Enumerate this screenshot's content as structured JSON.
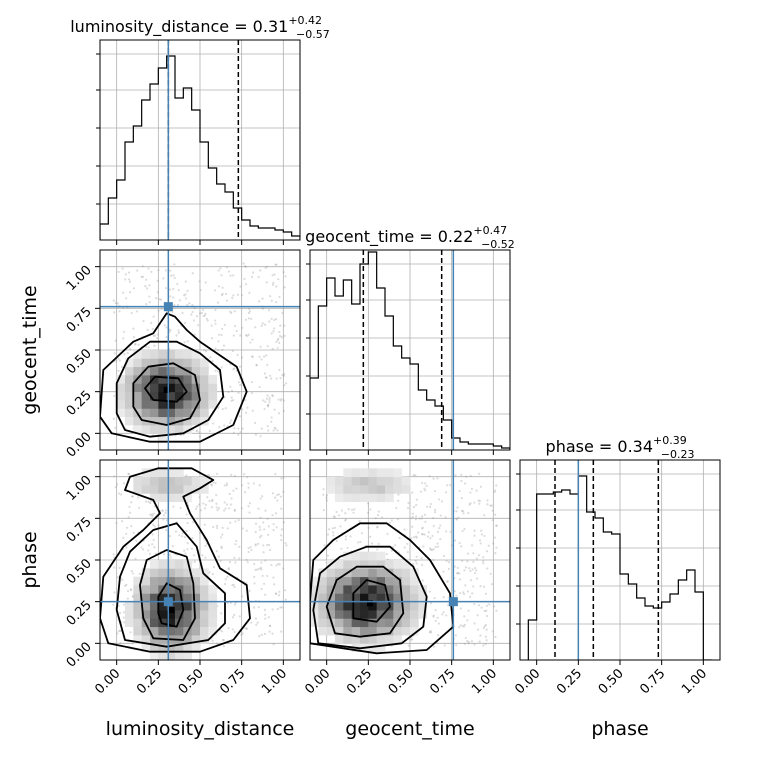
{
  "chart_data": {
    "type": "corner",
    "parameters": [
      "luminosity_distance",
      "geocent_time",
      "phase"
    ],
    "axis_range": [
      -0.1,
      1.1
    ],
    "ticks": [
      0.0,
      0.25,
      0.5,
      0.75,
      1.0
    ],
    "tick_labels": [
      "0.00",
      "0.25",
      "0.50",
      "0.75",
      "1.00"
    ],
    "grid": true,
    "colors": {
      "hist": "#000000",
      "truth": "#4682b4",
      "grid": "#b0b0b0"
    },
    "truths": {
      "luminosity_distance": 0.31,
      "geocent_time": 0.76,
      "phase": 0.25
    },
    "titles": [
      {
        "param": "luminosity_distance",
        "prefix": "luminosity_distance = 0.31",
        "plus": "+0.42",
        "minus": "−0.57"
      },
      {
        "param": "geocent_time",
        "prefix": "geocent_time = 0.22",
        "plus": "+0.47",
        "minus": "−0.52"
      },
      {
        "param": "phase",
        "prefix": "phase = 0.34",
        "plus": "+0.39",
        "minus": "−0.23"
      }
    ],
    "quantiles": {
      "luminosity_distance": [
        0.31,
        0.73
      ],
      "geocent_time": [
        0.22,
        0.69
      ],
      "phase": [
        0.11,
        0.34,
        0.73
      ]
    },
    "histograms": {
      "luminosity_distance": {
        "edges": [
          -0.1,
          -0.05,
          0.0,
          0.05,
          0.1,
          0.15,
          0.2,
          0.25,
          0.3,
          0.35,
          0.4,
          0.45,
          0.5,
          0.55,
          0.6,
          0.65,
          0.7,
          0.75,
          0.8,
          0.85,
          0.9,
          0.95,
          1.0,
          1.05,
          1.1
        ],
        "counts": [
          0.08,
          0.21,
          0.3,
          0.49,
          0.57,
          0.7,
          0.78,
          0.86,
          0.92,
          0.71,
          0.76,
          0.65,
          0.49,
          0.36,
          0.28,
          0.24,
          0.16,
          0.1,
          0.07,
          0.06,
          0.06,
          0.05,
          0.04,
          0.02
        ]
      },
      "geocent_time": {
        "edges": [
          -0.1,
          -0.05,
          0.0,
          0.05,
          0.1,
          0.15,
          0.2,
          0.25,
          0.3,
          0.35,
          0.4,
          0.45,
          0.5,
          0.55,
          0.6,
          0.65,
          0.7,
          0.75,
          0.8,
          0.85,
          0.9,
          0.95,
          1.0,
          1.05,
          1.1
        ],
        "counts": [
          0.36,
          0.72,
          0.86,
          0.77,
          0.85,
          0.73,
          0.93,
          0.99,
          0.81,
          0.67,
          0.52,
          0.46,
          0.43,
          0.3,
          0.25,
          0.22,
          0.15,
          0.06,
          0.04,
          0.03,
          0.03,
          0.03,
          0.02,
          0.01
        ]
      },
      "phase": {
        "edges": [
          -0.05,
          0.0,
          0.05,
          0.1,
          0.15,
          0.2,
          0.25,
          0.3,
          0.35,
          0.4,
          0.45,
          0.5,
          0.55,
          0.6,
          0.65,
          0.7,
          0.75,
          0.8,
          0.85,
          0.9,
          0.95,
          1.0,
          1.05
        ],
        "counts": [
          0.2,
          0.83,
          0.83,
          0.84,
          0.85,
          0.83,
          0.92,
          0.74,
          0.71,
          0.64,
          0.63,
          0.43,
          0.38,
          0.31,
          0.27,
          0.26,
          0.29,
          0.33,
          0.4,
          0.45,
          0.34,
          0.0
        ]
      }
    },
    "pairs": [
      {
        "x": "luminosity_distance",
        "y": "geocent_time",
        "peak": [
          0.3,
          0.26
        ],
        "contours": [
          [
            [
              0.22,
              0.2
            ],
            [
              0.36,
              0.19
            ],
            [
              0.42,
              0.25
            ],
            [
              0.37,
              0.33
            ],
            [
              0.23,
              0.34
            ],
            [
              0.17,
              0.27
            ]
          ],
          [
            [
              0.15,
              0.08
            ],
            [
              0.3,
              0.05
            ],
            [
              0.44,
              0.09
            ],
            [
              0.5,
              0.2
            ],
            [
              0.47,
              0.35
            ],
            [
              0.34,
              0.42
            ],
            [
              0.19,
              0.4
            ],
            [
              0.1,
              0.3
            ],
            [
              0.1,
              0.16
            ]
          ],
          [
            [
              0.05,
              0.02
            ],
            [
              0.2,
              -0.02
            ],
            [
              0.4,
              0.0
            ],
            [
              0.55,
              0.08
            ],
            [
              0.64,
              0.22
            ],
            [
              0.62,
              0.38
            ],
            [
              0.5,
              0.48
            ],
            [
              0.36,
              0.55
            ],
            [
              0.2,
              0.55
            ],
            [
              0.07,
              0.45
            ],
            [
              0.0,
              0.3
            ],
            [
              0.0,
              0.12
            ]
          ],
          [
            [
              -0.03,
              0.0
            ],
            [
              0.2,
              -0.05
            ],
            [
              0.5,
              -0.05
            ],
            [
              0.7,
              0.05
            ],
            [
              0.78,
              0.25
            ],
            [
              0.72,
              0.4
            ],
            [
              0.5,
              0.55
            ],
            [
              0.42,
              0.62
            ],
            [
              0.35,
              0.7
            ],
            [
              0.3,
              0.72
            ],
            [
              0.22,
              0.6
            ],
            [
              0.1,
              0.55
            ],
            [
              -0.08,
              0.38
            ],
            [
              -0.1,
              0.1
            ]
          ]
        ],
        "blobs": [
          {
            "x": 0.3,
            "y": 0.25,
            "sx": 0.14,
            "sy": 0.12,
            "w": 1.0
          }
        ]
      },
      {
        "x": "luminosity_distance",
        "y": "phase",
        "peak": [
          0.33,
          0.2
        ],
        "contours": [
          [
            [
              0.27,
              0.12
            ],
            [
              0.36,
              0.1
            ],
            [
              0.4,
              0.2
            ],
            [
              0.38,
              0.32
            ],
            [
              0.3,
              0.36
            ],
            [
              0.25,
              0.28
            ],
            [
              0.25,
              0.18
            ]
          ],
          [
            [
              0.22,
              0.03
            ],
            [
              0.4,
              0.02
            ],
            [
              0.47,
              0.15
            ],
            [
              0.46,
              0.36
            ],
            [
              0.42,
              0.52
            ],
            [
              0.3,
              0.56
            ],
            [
              0.18,
              0.5
            ],
            [
              0.14,
              0.35
            ],
            [
              0.16,
              0.15
            ]
          ],
          [
            [
              0.05,
              0.02
            ],
            [
              0.3,
              -0.02
            ],
            [
              0.55,
              0.02
            ],
            [
              0.65,
              0.12
            ],
            [
              0.65,
              0.3
            ],
            [
              0.52,
              0.42
            ],
            [
              0.48,
              0.58
            ],
            [
              0.36,
              0.72
            ],
            [
              0.22,
              0.68
            ],
            [
              0.08,
              0.55
            ],
            [
              0.02,
              0.4
            ],
            [
              0.0,
              0.2
            ]
          ],
          [
            [
              -0.05,
              0.0
            ],
            [
              0.2,
              -0.05
            ],
            [
              0.5,
              -0.05
            ],
            [
              0.7,
              0.02
            ],
            [
              0.8,
              0.15
            ],
            [
              0.78,
              0.35
            ],
            [
              0.62,
              0.45
            ],
            [
              0.54,
              0.62
            ],
            [
              0.44,
              0.78
            ],
            [
              0.4,
              0.88
            ],
            [
              0.5,
              0.93
            ],
            [
              0.58,
              0.98
            ],
            [
              0.45,
              1.05
            ],
            [
              0.25,
              1.05
            ],
            [
              0.08,
              1.0
            ],
            [
              0.05,
              0.92
            ],
            [
              0.22,
              0.86
            ],
            [
              0.26,
              0.78
            ],
            [
              0.16,
              0.68
            ],
            [
              0.04,
              0.58
            ],
            [
              -0.08,
              0.4
            ],
            [
              -0.1,
              0.15
            ]
          ]
        ],
        "blobs": [
          {
            "x": 0.33,
            "y": 0.2,
            "sx": 0.12,
            "sy": 0.14,
            "w": 1.0
          },
          {
            "x": 0.3,
            "y": 0.95,
            "sx": 0.16,
            "sy": 0.06,
            "w": 0.25
          }
        ]
      },
      {
        "x": "geocent_time",
        "y": "phase",
        "peak": [
          0.26,
          0.24
        ],
        "contours": [
          [
            [
              0.16,
              0.15
            ],
            [
              0.3,
              0.13
            ],
            [
              0.38,
              0.22
            ],
            [
              0.35,
              0.35
            ],
            [
              0.24,
              0.38
            ],
            [
              0.16,
              0.3
            ]
          ],
          [
            [
              0.05,
              0.06
            ],
            [
              0.2,
              0.04
            ],
            [
              0.38,
              0.06
            ],
            [
              0.46,
              0.18
            ],
            [
              0.44,
              0.38
            ],
            [
              0.34,
              0.46
            ],
            [
              0.18,
              0.46
            ],
            [
              0.06,
              0.38
            ],
            [
              0.0,
              0.22
            ]
          ],
          [
            [
              -0.05,
              0.0
            ],
            [
              0.2,
              -0.03
            ],
            [
              0.45,
              0.0
            ],
            [
              0.58,
              0.1
            ],
            [
              0.6,
              0.28
            ],
            [
              0.52,
              0.46
            ],
            [
              0.38,
              0.58
            ],
            [
              0.24,
              0.58
            ],
            [
              0.08,
              0.52
            ],
            [
              -0.04,
              0.42
            ],
            [
              -0.08,
              0.2
            ]
          ],
          [
            [
              -0.1,
              0.0
            ],
            [
              0.3,
              -0.06
            ],
            [
              0.6,
              -0.04
            ],
            [
              0.76,
              0.1
            ],
            [
              0.74,
              0.3
            ],
            [
              0.62,
              0.5
            ],
            [
              0.5,
              0.62
            ],
            [
              0.36,
              0.72
            ],
            [
              0.2,
              0.72
            ],
            [
              0.04,
              0.62
            ],
            [
              -0.08,
              0.5
            ],
            [
              -0.1,
              0.25
            ]
          ]
        ],
        "blobs": [
          {
            "x": 0.24,
            "y": 0.25,
            "sx": 0.16,
            "sy": 0.13,
            "w": 1.0
          },
          {
            "x": 0.25,
            "y": 0.95,
            "sx": 0.18,
            "sy": 0.06,
            "w": 0.25
          }
        ]
      }
    ]
  }
}
